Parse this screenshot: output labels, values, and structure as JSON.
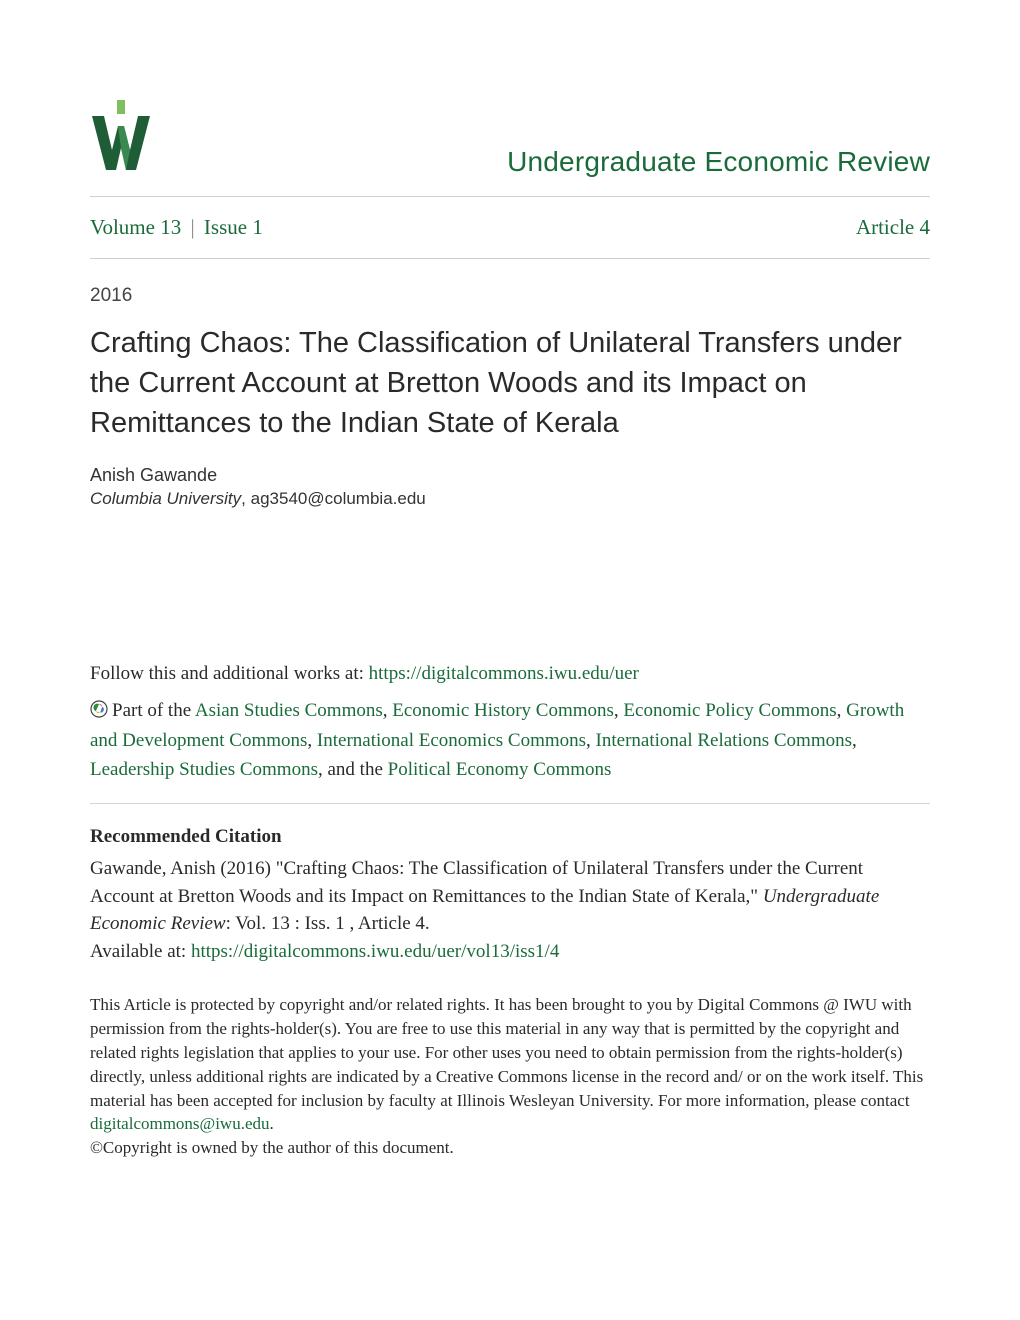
{
  "colors": {
    "accent": "#1a6b3a",
    "logo_dark": "#1f5d36",
    "logo_mid": "#3a8a4f",
    "logo_light": "#7fbf5f",
    "text": "#2a2a2a",
    "rule": "#cfcfcf"
  },
  "header": {
    "journal_title": "Undergraduate Economic Review"
  },
  "volume_row": {
    "volume_label": "Volume 13",
    "issue_label": "Issue 1",
    "article_label": "Article 4"
  },
  "year": "2016",
  "article_title": "Crafting Chaos: The Classification of Unilateral Transfers under the Current Account at Bretton Woods and its Impact on Remittances to the Indian State of Kerala",
  "author": {
    "name": "Anish Gawande",
    "institution": "Columbia University",
    "email": "ag3540@columbia.edu"
  },
  "follow": {
    "prefix": "Follow this and additional works at: ",
    "url_text": "https://digitalcommons.iwu.edu/uer"
  },
  "partof": {
    "lead": "Part of the ",
    "items": [
      "Asian Studies Commons",
      "Economic History Commons",
      "Economic Policy Commons",
      "Growth and Development Commons",
      "International Economics Commons",
      "International Relations Commons",
      "Leadership Studies Commons"
    ],
    "and_the": ", and the ",
    "last": "Political Economy Commons"
  },
  "citation": {
    "heading": "Recommended Citation",
    "text_before_journal": "Gawande, Anish (2016) \"Crafting Chaos: The Classification of Unilateral Transfers under the Current Account at Bretton Woods and its Impact on Remittances to the Indian State of Kerala,\" ",
    "journal_name": "Undergraduate Economic Review",
    "text_after_journal": ": Vol. 13 : Iss. 1 , Article 4.",
    "available_label": "Available at: ",
    "available_url": "https://digitalcommons.iwu.edu/uer/vol13/iss1/4"
  },
  "copyright": {
    "body_before_email": "This Article is protected by copyright and/or related rights. It has been brought to you by Digital Commons @ IWU with permission from the rights-holder(s). You are free to use this material in any way that is permitted by the copyright and related rights legislation that applies to your use. For other uses you need to obtain permission from the rights-holder(s) directly, unless additional rights are indicated by a Creative Commons license in the record and/ or on the work itself. This material has been accepted for inclusion by faculty at Illinois Wesleyan University. For more information, please contact ",
    "email_text": "digitalcommons@iwu.edu",
    "body_after_email": ".",
    "line2": "©Copyright is owned by the author of this document."
  }
}
